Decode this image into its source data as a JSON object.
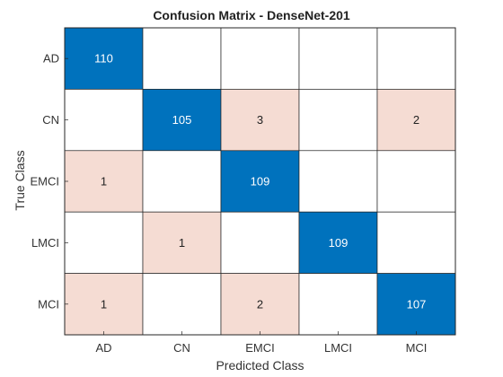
{
  "chart_data": {
    "type": "heatmap",
    "title": "Confusion Matrix - DenseNet-201",
    "xlabel": "Predicted Class",
    "ylabel": "True Class",
    "classes": [
      "AD",
      "CN",
      "EMCI",
      "LMCI",
      "MCI"
    ],
    "matrix": [
      [
        110,
        0,
        0,
        0,
        0
      ],
      [
        0,
        105,
        3,
        0,
        2
      ],
      [
        1,
        0,
        109,
        0,
        0
      ],
      [
        0,
        1,
        0,
        109,
        0
      ],
      [
        1,
        0,
        2,
        0,
        107
      ]
    ],
    "colors": {
      "diagonal": "#0072BD",
      "off_diagonal": "#F5DCD3",
      "empty": "#FFFFFF",
      "grid": "#262626"
    }
  }
}
